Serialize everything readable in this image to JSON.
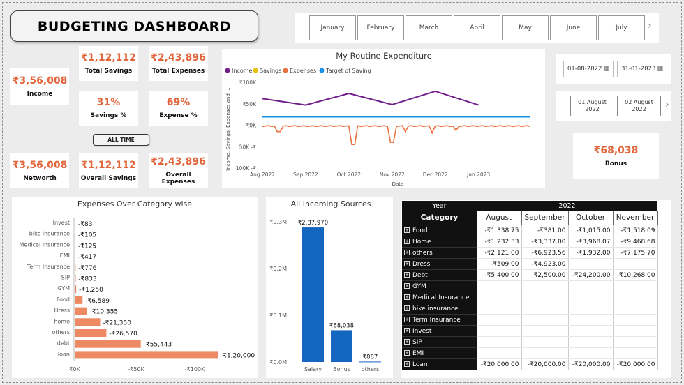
{
  "dashboard": {
    "title": "BUDGETING DASHBOARD",
    "all_time_label": "ALL TIME"
  },
  "kpis": {
    "income": {
      "value": "₹3,56,008",
      "label": "Income"
    },
    "total_savings": {
      "value": "₹1,12,112",
      "label": "Total Savings"
    },
    "total_expenses": {
      "value": "₹2,43,896",
      "label": "Total Expenses"
    },
    "savings_pct": {
      "value": "31%",
      "label": "Savings %"
    },
    "expense_pct": {
      "value": "69%",
      "label": "Expense %"
    },
    "networth": {
      "value": "₹3,56,008",
      "label": "Networth"
    },
    "overall_savings": {
      "value": "₹1,12,112",
      "label": "Overall Savings"
    },
    "overall_expenses": {
      "value": "₹2,43,896",
      "label": "Overall Expenses"
    },
    "bonus": {
      "value": "₹68,038",
      "label": "Bonus"
    }
  },
  "month_slicer": {
    "items": [
      "January",
      "February",
      "March",
      "April",
      "May",
      "June",
      "July"
    ],
    "next_icon": "chevron-right-icon"
  },
  "date_range": {
    "start": "01-08-2022",
    "end": "31-01-2023",
    "icon": "calendar-icon"
  },
  "day_slicer": {
    "items": [
      {
        "l1": "01 August",
        "l2": "2022"
      },
      {
        "l1": "02 August",
        "l2": "2022"
      }
    ]
  },
  "colors": {
    "accent": "#e1653a",
    "income": "#701e89",
    "savings": "#e8c000",
    "expenses": "#e8703a",
    "target": "#1a8fe3",
    "bar_blue": "#1566c0",
    "bar_orange": "#ee8a63"
  },
  "chart_data": [
    {
      "id": "routine",
      "type": "line",
      "title": "My Routine Expenditure",
      "xlabel": "Date",
      "ylabel": "Income, Savings, Expenses and ...",
      "xticks": [
        "Aug 2022",
        "Sep 2022",
        "Oct 2022",
        "Nov 2022",
        "Dec 2022",
        "Jan 2023"
      ],
      "yticks": [
        "₹100K",
        "₹50K",
        "₹0K",
        "50K -₹",
        "100K -₹"
      ],
      "ylim": [
        -100000,
        100000
      ],
      "legend": "top-left",
      "series": [
        {
          "name": "Income",
          "points": [
            [
              0,
              62000
            ],
            [
              1,
              47000
            ],
            [
              2,
              74000
            ],
            [
              3,
              48000
            ],
            [
              4,
              79000
            ],
            [
              5,
              47000
            ]
          ]
        },
        {
          "name": "Savings",
          "points": []
        },
        {
          "name": "Expenses",
          "spikes": [
            [
              0.38,
              -15000
            ],
            [
              2.1,
              -45000
            ],
            [
              3.0,
              -40000
            ],
            [
              3.3,
              -15000
            ],
            [
              3.9,
              -18000
            ],
            [
              4.5,
              -12000
            ]
          ],
          "baseline": -2000,
          "end": 6.2
        },
        {
          "name": "Target of Saving",
          "value": 20000,
          "end": 6.2
        }
      ]
    },
    {
      "id": "category",
      "type": "bar",
      "title": "Expenses Over Category wise",
      "categories": [
        "Invest",
        "bike insurance",
        "Medical Insurance",
        "EMI",
        "Term Insurance",
        "SIP",
        "GYM",
        "Food",
        "Dress",
        "home",
        "others",
        "debt",
        "loan"
      ],
      "values": [
        -83,
        -105,
        -125,
        -417,
        -776,
        -833,
        -1250,
        -6589,
        -10355,
        -21350,
        -26570,
        -55443,
        -120000
      ],
      "labels": [
        "-₹83",
        "-₹105",
        "-₹125",
        "-₹417",
        "-₹776",
        "-₹833",
        "-₹1,250",
        "-₹6,589",
        "-₹10,355",
        "-₹21,350",
        "-₹26,570",
        "-₹55,443",
        "-₹1,20,000"
      ],
      "xticks": [
        "₹0K",
        "-₹50K",
        "-₹100K"
      ],
      "xlim": [
        0,
        -120000
      ]
    },
    {
      "id": "incoming",
      "type": "bar",
      "title": "All Incoming Sources",
      "categories": [
        "Salary",
        "Bonus",
        "others"
      ],
      "values": [
        287970,
        68038,
        867
      ],
      "labels": [
        "₹2,87,970",
        "₹68,038",
        "₹867"
      ],
      "yticks": [
        "₹0.3M",
        "₹0.2M",
        "₹0.1M",
        "₹0.0M"
      ],
      "ylim": [
        0,
        300000
      ]
    },
    {
      "id": "matrix",
      "type": "table",
      "year_label": "Year",
      "year": "2022",
      "category_label": "Category",
      "columns": [
        "August",
        "September",
        "October",
        "November"
      ],
      "rows": [
        {
          "name": "Food",
          "values": [
            "-₹1,338.75",
            "-₹381.00",
            "-₹1,015.00",
            "-₹1,518.09"
          ]
        },
        {
          "name": "Home",
          "values": [
            "-₹1,232.33",
            "-₹3,337.00",
            "-₹3,968.07",
            "-₹9,468.68"
          ]
        },
        {
          "name": "others",
          "values": [
            "-₹2,121.00",
            "-₹6,923.56",
            "-₹1,932.00",
            "-₹7,175.70"
          ]
        },
        {
          "name": "Dress",
          "values": [
            "-₹509.00",
            "-₹4,923.00",
            "",
            ""
          ]
        },
        {
          "name": "Debt",
          "values": [
            "-₹5,400.00",
            "₹2,500.00",
            "-₹24,200.00",
            "-₹10,268.00"
          ]
        },
        {
          "name": "GYM",
          "values": [
            "",
            "",
            "",
            ""
          ]
        },
        {
          "name": "Medical Insurance",
          "values": [
            "",
            "",
            "",
            ""
          ]
        },
        {
          "name": "bike insurance",
          "values": [
            "",
            "",
            "",
            ""
          ]
        },
        {
          "name": "Term Insurance",
          "values": [
            "",
            "",
            "",
            ""
          ]
        },
        {
          "name": "Invest",
          "values": [
            "",
            "",
            "",
            ""
          ]
        },
        {
          "name": "SIP",
          "values": [
            "",
            "",
            "",
            ""
          ]
        },
        {
          "name": "EMI",
          "values": [
            "",
            "",
            "",
            ""
          ]
        },
        {
          "name": "Loan",
          "values": [
            "-₹20,000.00",
            "-₹20,000.00",
            "-₹20,000.00",
            "-₹20,000.00"
          ]
        }
      ]
    }
  ]
}
